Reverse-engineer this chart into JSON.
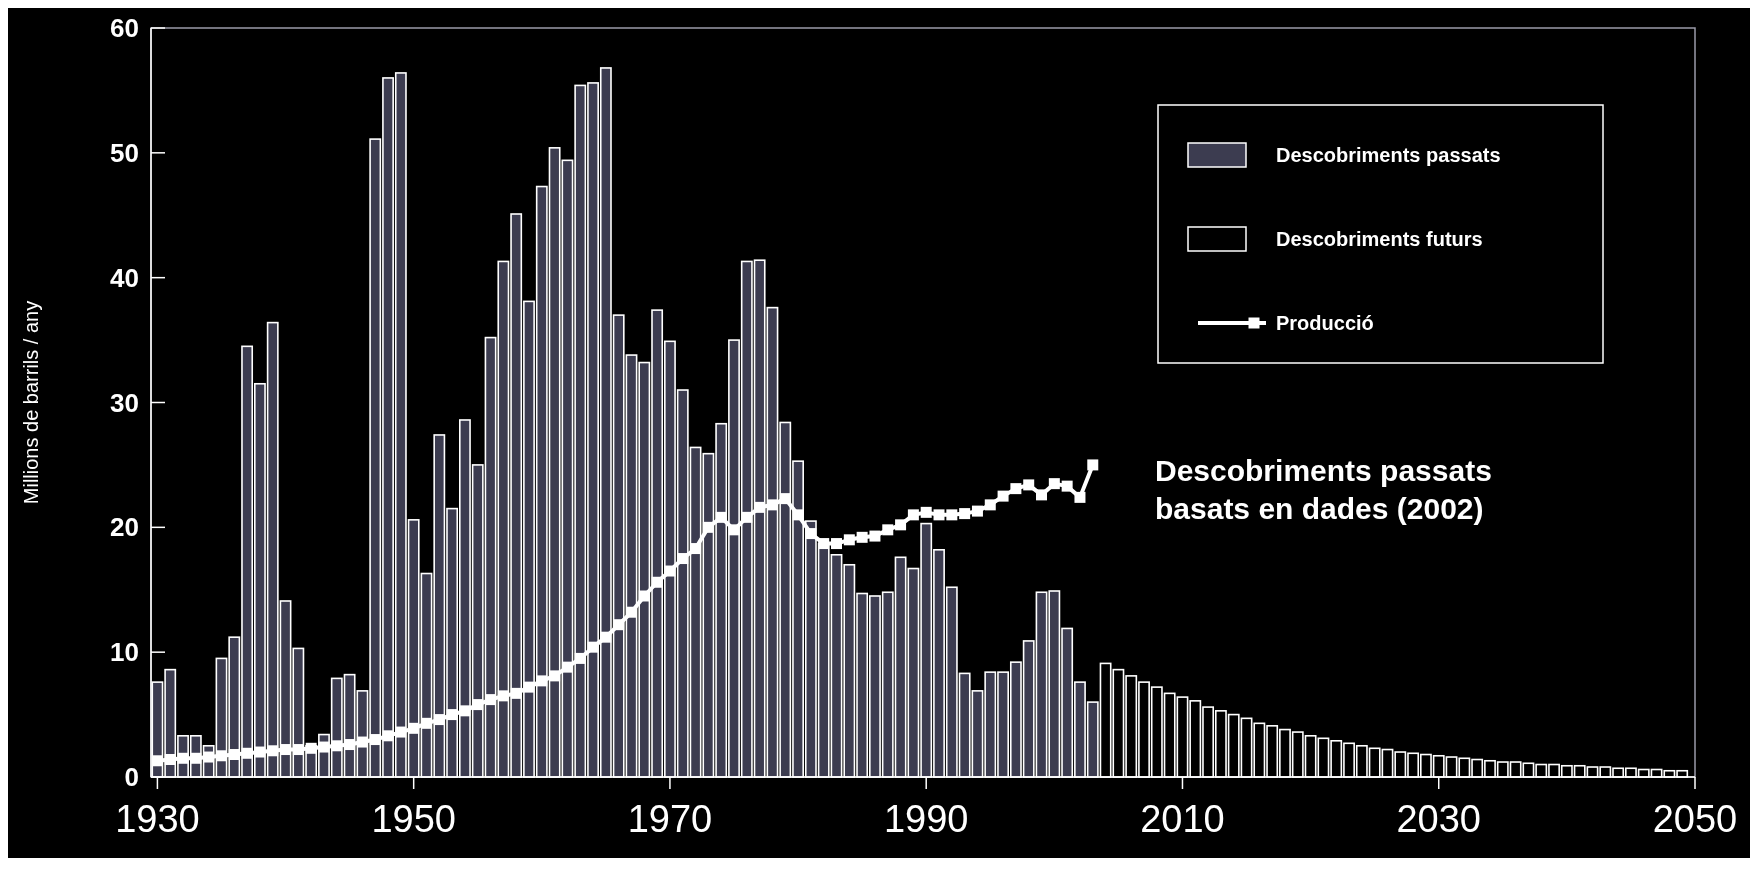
{
  "chart_data": {
    "type": "bar",
    "ylabel": "Millions de barrils / any",
    "x": [
      1930,
      1931,
      1932,
      1933,
      1934,
      1935,
      1936,
      1937,
      1938,
      1939,
      1940,
      1941,
      1942,
      1943,
      1944,
      1945,
      1946,
      1947,
      1948,
      1949,
      1950,
      1951,
      1952,
      1953,
      1954,
      1955,
      1956,
      1957,
      1958,
      1959,
      1960,
      1961,
      1962,
      1963,
      1964,
      1965,
      1966,
      1967,
      1968,
      1969,
      1970,
      1971,
      1972,
      1973,
      1974,
      1975,
      1976,
      1977,
      1978,
      1979,
      1980,
      1981,
      1982,
      1983,
      1984,
      1985,
      1986,
      1987,
      1988,
      1989,
      1990,
      1991,
      1992,
      1993,
      1994,
      1995,
      1996,
      1997,
      1998,
      1999,
      2000,
      2001,
      2002,
      2003,
      2004,
      2005,
      2006,
      2007,
      2008,
      2009,
      2010,
      2011,
      2012,
      2013,
      2014,
      2015,
      2016,
      2017,
      2018,
      2019,
      2020,
      2021,
      2022,
      2023,
      2024,
      2025,
      2026,
      2027,
      2028,
      2029,
      2030,
      2031,
      2032,
      2033,
      2034,
      2035,
      2036,
      2037,
      2038,
      2039,
      2040,
      2041,
      2042,
      2043,
      2044,
      2045,
      2046,
      2047,
      2048,
      2049
    ],
    "series": [
      {
        "name": "Descobriments passats",
        "color": "#3c3c50",
        "values": [
          7.6,
          8.6,
          3.3,
          3.3,
          2.5,
          9.5,
          11.2,
          34.5,
          31.5,
          36.4,
          14.1,
          10.3,
          2.5,
          3.4,
          7.9,
          8.2,
          6.9,
          51.1,
          56.0,
          56.4,
          20.6,
          16.3,
          27.4,
          21.5,
          28.6,
          25.0,
          35.2,
          41.3,
          45.1,
          38.1,
          47.3,
          50.4,
          49.4,
          55.4,
          55.6,
          56.8,
          37.0,
          33.8,
          33.2,
          37.4,
          34.9,
          31.0,
          26.4,
          25.9,
          28.3,
          35.0,
          41.3,
          41.4,
          37.6,
          28.4,
          25.3,
          20.5,
          18.7,
          17.8,
          17.0,
          14.7,
          14.5,
          14.8,
          17.6,
          16.7,
          20.3,
          18.2,
          15.2,
          8.3,
          6.9,
          8.4,
          8.4,
          9.2,
          10.9,
          14.8,
          14.9,
          11.9,
          7.6,
          6.0,
          null,
          null,
          null,
          null,
          null,
          null,
          null,
          null,
          null,
          null,
          null,
          null,
          null,
          null,
          null,
          null,
          null,
          null,
          null,
          null,
          null,
          null,
          null,
          null,
          null,
          null,
          null,
          null,
          null,
          null,
          null,
          null,
          null,
          null,
          null,
          null,
          null,
          null,
          null,
          null,
          null,
          null,
          null,
          null,
          null,
          null
        ]
      },
      {
        "name": "Descobriments futurs",
        "color": "#000000",
        "values": [
          null,
          null,
          null,
          null,
          null,
          null,
          null,
          null,
          null,
          null,
          null,
          null,
          null,
          null,
          null,
          null,
          null,
          null,
          null,
          null,
          null,
          null,
          null,
          null,
          null,
          null,
          null,
          null,
          null,
          null,
          null,
          null,
          null,
          null,
          null,
          null,
          null,
          null,
          null,
          null,
          null,
          null,
          null,
          null,
          null,
          null,
          null,
          null,
          null,
          null,
          null,
          null,
          null,
          null,
          null,
          null,
          null,
          null,
          null,
          null,
          null,
          null,
          null,
          null,
          null,
          null,
          null,
          null,
          null,
          null,
          null,
          null,
          null,
          null,
          9.1,
          8.6,
          8.1,
          7.6,
          7.2,
          6.7,
          6.4,
          6.1,
          5.6,
          5.3,
          5.0,
          4.7,
          4.3,
          4.1,
          3.8,
          3.6,
          3.3,
          3.1,
          2.9,
          2.7,
          2.5,
          2.3,
          2.2,
          2.0,
          1.9,
          1.8,
          1.7,
          1.6,
          1.5,
          1.4,
          1.3,
          1.2,
          1.2,
          1.1,
          1.0,
          1.0,
          0.9,
          0.9,
          0.8,
          0.8,
          0.7,
          0.7,
          0.6,
          0.6,
          0.5,
          0.5
        ]
      },
      {
        "name": "Producció",
        "type": "line",
        "color": "#ffffff",
        "marker": "square",
        "x": [
          1930,
          1931,
          1932,
          1933,
          1934,
          1935,
          1936,
          1937,
          1938,
          1939,
          1940,
          1941,
          1942,
          1943,
          1944,
          1945,
          1946,
          1947,
          1948,
          1949,
          1950,
          1951,
          1952,
          1953,
          1954,
          1955,
          1956,
          1957,
          1958,
          1959,
          1960,
          1961,
          1962,
          1963,
          1964,
          1965,
          1966,
          1967,
          1968,
          1969,
          1970,
          1971,
          1972,
          1973,
          1974,
          1975,
          1976,
          1977,
          1978,
          1979,
          1980,
          1981,
          1982,
          1983,
          1984,
          1985,
          1986,
          1987,
          1988,
          1989,
          1990,
          1991,
          1992,
          1993,
          1994,
          1995,
          1996,
          1997,
          1998,
          1999,
          2000,
          2001,
          2002,
          2003
        ],
        "values": [
          1.3,
          1.4,
          1.5,
          1.5,
          1.6,
          1.7,
          1.8,
          1.9,
          2.0,
          2.1,
          2.2,
          2.2,
          2.3,
          2.4,
          2.5,
          2.6,
          2.8,
          3.0,
          3.3,
          3.6,
          3.9,
          4.3,
          4.6,
          5.0,
          5.3,
          5.8,
          6.2,
          6.5,
          6.7,
          7.2,
          7.7,
          8.1,
          8.8,
          9.5,
          10.4,
          11.2,
          12.2,
          13.2,
          14.5,
          15.6,
          16.5,
          17.5,
          18.3,
          20.0,
          20.8,
          19.8,
          20.8,
          21.6,
          21.8,
          22.3,
          21.0,
          19.5,
          18.7,
          18.7,
          19.0,
          19.2,
          19.3,
          19.8,
          20.2,
          21.0,
          21.2,
          21.0,
          21.0,
          21.1,
          21.3,
          21.8,
          22.5,
          23.1,
          23.4,
          22.6,
          23.5,
          23.3,
          22.4,
          25.0
        ]
      }
    ],
    "xlim": [
      1929.5,
      2050
    ],
    "xticks": [
      1930,
      1950,
      1970,
      1990,
      2010,
      2030,
      2050
    ],
    "ylim": [
      0,
      60
    ],
    "yticks": [
      0,
      10,
      20,
      30,
      40,
      50,
      60
    ],
    "legend": "top right",
    "annotations": [
      "Descobriments passats basats en dades (2002)"
    ]
  }
}
